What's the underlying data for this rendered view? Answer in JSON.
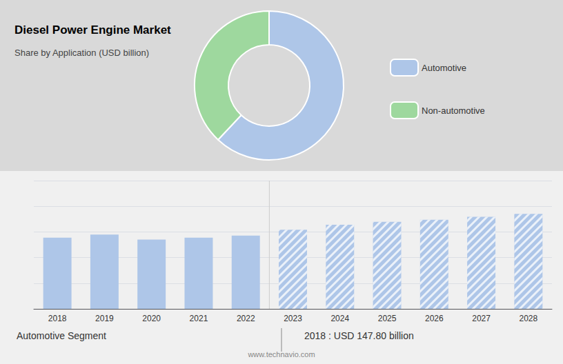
{
  "chart_data": [
    {
      "type": "pie",
      "title": "Diesel Power Engine Market",
      "subtitle": "Share by Application (USD billion)",
      "categories": [
        "Automotive",
        "Non-automotive"
      ],
      "values": [
        62,
        38
      ],
      "colors": [
        "#aec6e8",
        "#9ed89e"
      ],
      "legend": "right"
    },
    {
      "type": "bar",
      "categories": [
        "2018",
        "2019",
        "2020",
        "2021",
        "2022",
        "2023",
        "2024",
        "2025",
        "2026",
        "2027",
        "2028"
      ],
      "series": [
        {
          "color": "#aec6e8",
          "values": [
            0.72,
            0.75,
            0.7,
            0.72,
            0.74,
            null,
            null,
            null,
            null,
            null,
            null
          ]
        },
        {
          "color": "#aec6e8",
          "values": [
            null,
            null,
            null,
            null,
            null,
            0.8,
            0.85,
            0.88,
            0.9,
            0.93,
            0.96
          ]
        }
      ],
      "ylim": [
        0,
        1.296
      ],
      "yticks": [
        0,
        0.2592,
        0.5184,
        0.7776,
        1.0368,
        1.296
      ],
      "grid": true,
      "tick_labels": "x",
      "annotations": [
        "Automotive Segment",
        "2018 : USD 147.80 billion",
        "www.technavio.com"
      ]
    }
  ]
}
